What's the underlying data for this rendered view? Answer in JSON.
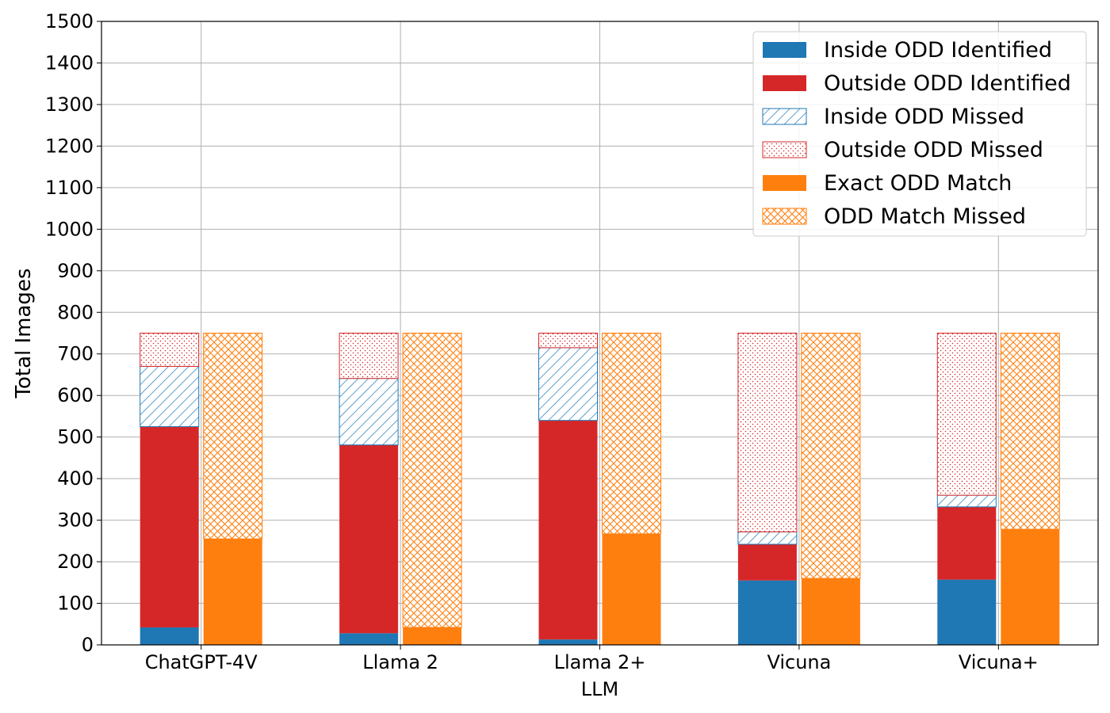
{
  "chart_data": {
    "type": "bar",
    "subtype": "stacked-grouped",
    "title": "",
    "xlabel": "",
    "ylabel": "Total Images",
    "ylim": [
      0,
      1500
    ],
    "yticks": [
      0,
      100,
      200,
      300,
      400,
      500,
      600,
      700,
      800,
      900,
      1000,
      1100,
      1200,
      1300,
      1400,
      1500
    ],
    "grid": true,
    "legend_position": "top-right",
    "categories": [
      [
        "ChatGPT-4V"
      ],
      [
        "Llama 2"
      ],
      [
        "Llama 2+",
        "LLM"
      ],
      [
        "Vicuna"
      ],
      [
        "Vicuna+"
      ]
    ],
    "series": [
      {
        "name": "Inside ODD Identified",
        "stack": "left",
        "color": "#1f77b4",
        "pattern": "solid",
        "values": [
          42,
          28,
          13,
          155,
          157
        ]
      },
      {
        "name": "Outside ODD Identified",
        "stack": "left",
        "color": "#d62728",
        "pattern": "solid",
        "values": [
          483,
          453,
          527,
          87,
          175
        ]
      },
      {
        "name": "Inside ODD Missed",
        "stack": "left",
        "color": "#1f77b4",
        "pattern": "diagonal",
        "values": [
          145,
          160,
          175,
          30,
          28
        ]
      },
      {
        "name": "Outside ODD Missed",
        "stack": "left",
        "color": "#d62728",
        "pattern": "dots",
        "values": [
          80,
          109,
          35,
          478,
          390
        ]
      },
      {
        "name": "Exact ODD Match",
        "stack": "right",
        "color": "#ff7f0e",
        "pattern": "solid",
        "values": [
          255,
          42,
          267,
          160,
          278
        ]
      },
      {
        "name": "ODD Match Missed",
        "stack": "right",
        "color": "#ff7f0e",
        "pattern": "crosshatch",
        "values": [
          495,
          708,
          483,
          590,
          472
        ]
      }
    ]
  }
}
